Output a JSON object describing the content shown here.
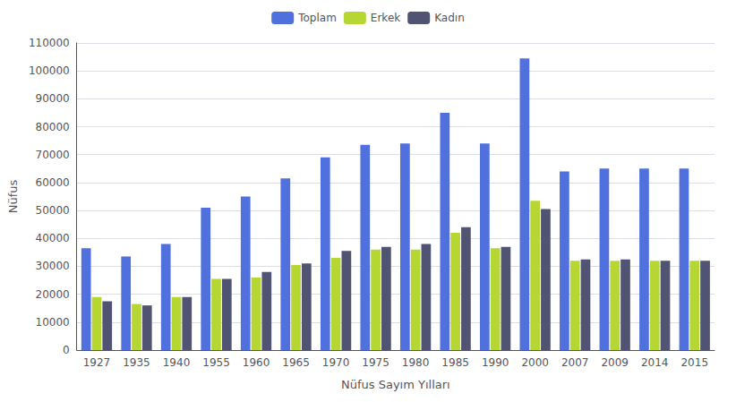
{
  "chart_data": {
    "type": "bar",
    "xlabel": "Nüfus Sayım Yılları",
    "ylabel": "Nüfus",
    "categories": [
      "1927",
      "1935",
      "1940",
      "1955",
      "1960",
      "1965",
      "1970",
      "1975",
      "1980",
      "1985",
      "1990",
      "2000",
      "2007",
      "2009",
      "2014",
      "2015"
    ],
    "series": [
      {
        "name": "Toplam",
        "values": [
          36500,
          33500,
          38000,
          51000,
          55000,
          61500,
          69000,
          73500,
          74000,
          85000,
          74000,
          104500,
          64000,
          65000,
          65000,
          65000
        ]
      },
      {
        "name": "Erkek",
        "values": [
          19000,
          16500,
          19000,
          25500,
          26000,
          30500,
          33000,
          36000,
          36000,
          42000,
          36500,
          53500,
          32000,
          32000,
          32000,
          32000
        ]
      },
      {
        "name": "Kadın",
        "values": [
          17500,
          16000,
          19000,
          25500,
          28000,
          31000,
          35500,
          37000,
          38000,
          44000,
          37000,
          50500,
          32500,
          32500,
          32000,
          32000
        ]
      }
    ],
    "ylim": [
      0,
      110000
    ],
    "yticks": [
      0,
      10000,
      20000,
      30000,
      40000,
      50000,
      60000,
      70000,
      80000,
      90000,
      100000,
      110000
    ],
    "grid": true,
    "legend": "top"
  }
}
